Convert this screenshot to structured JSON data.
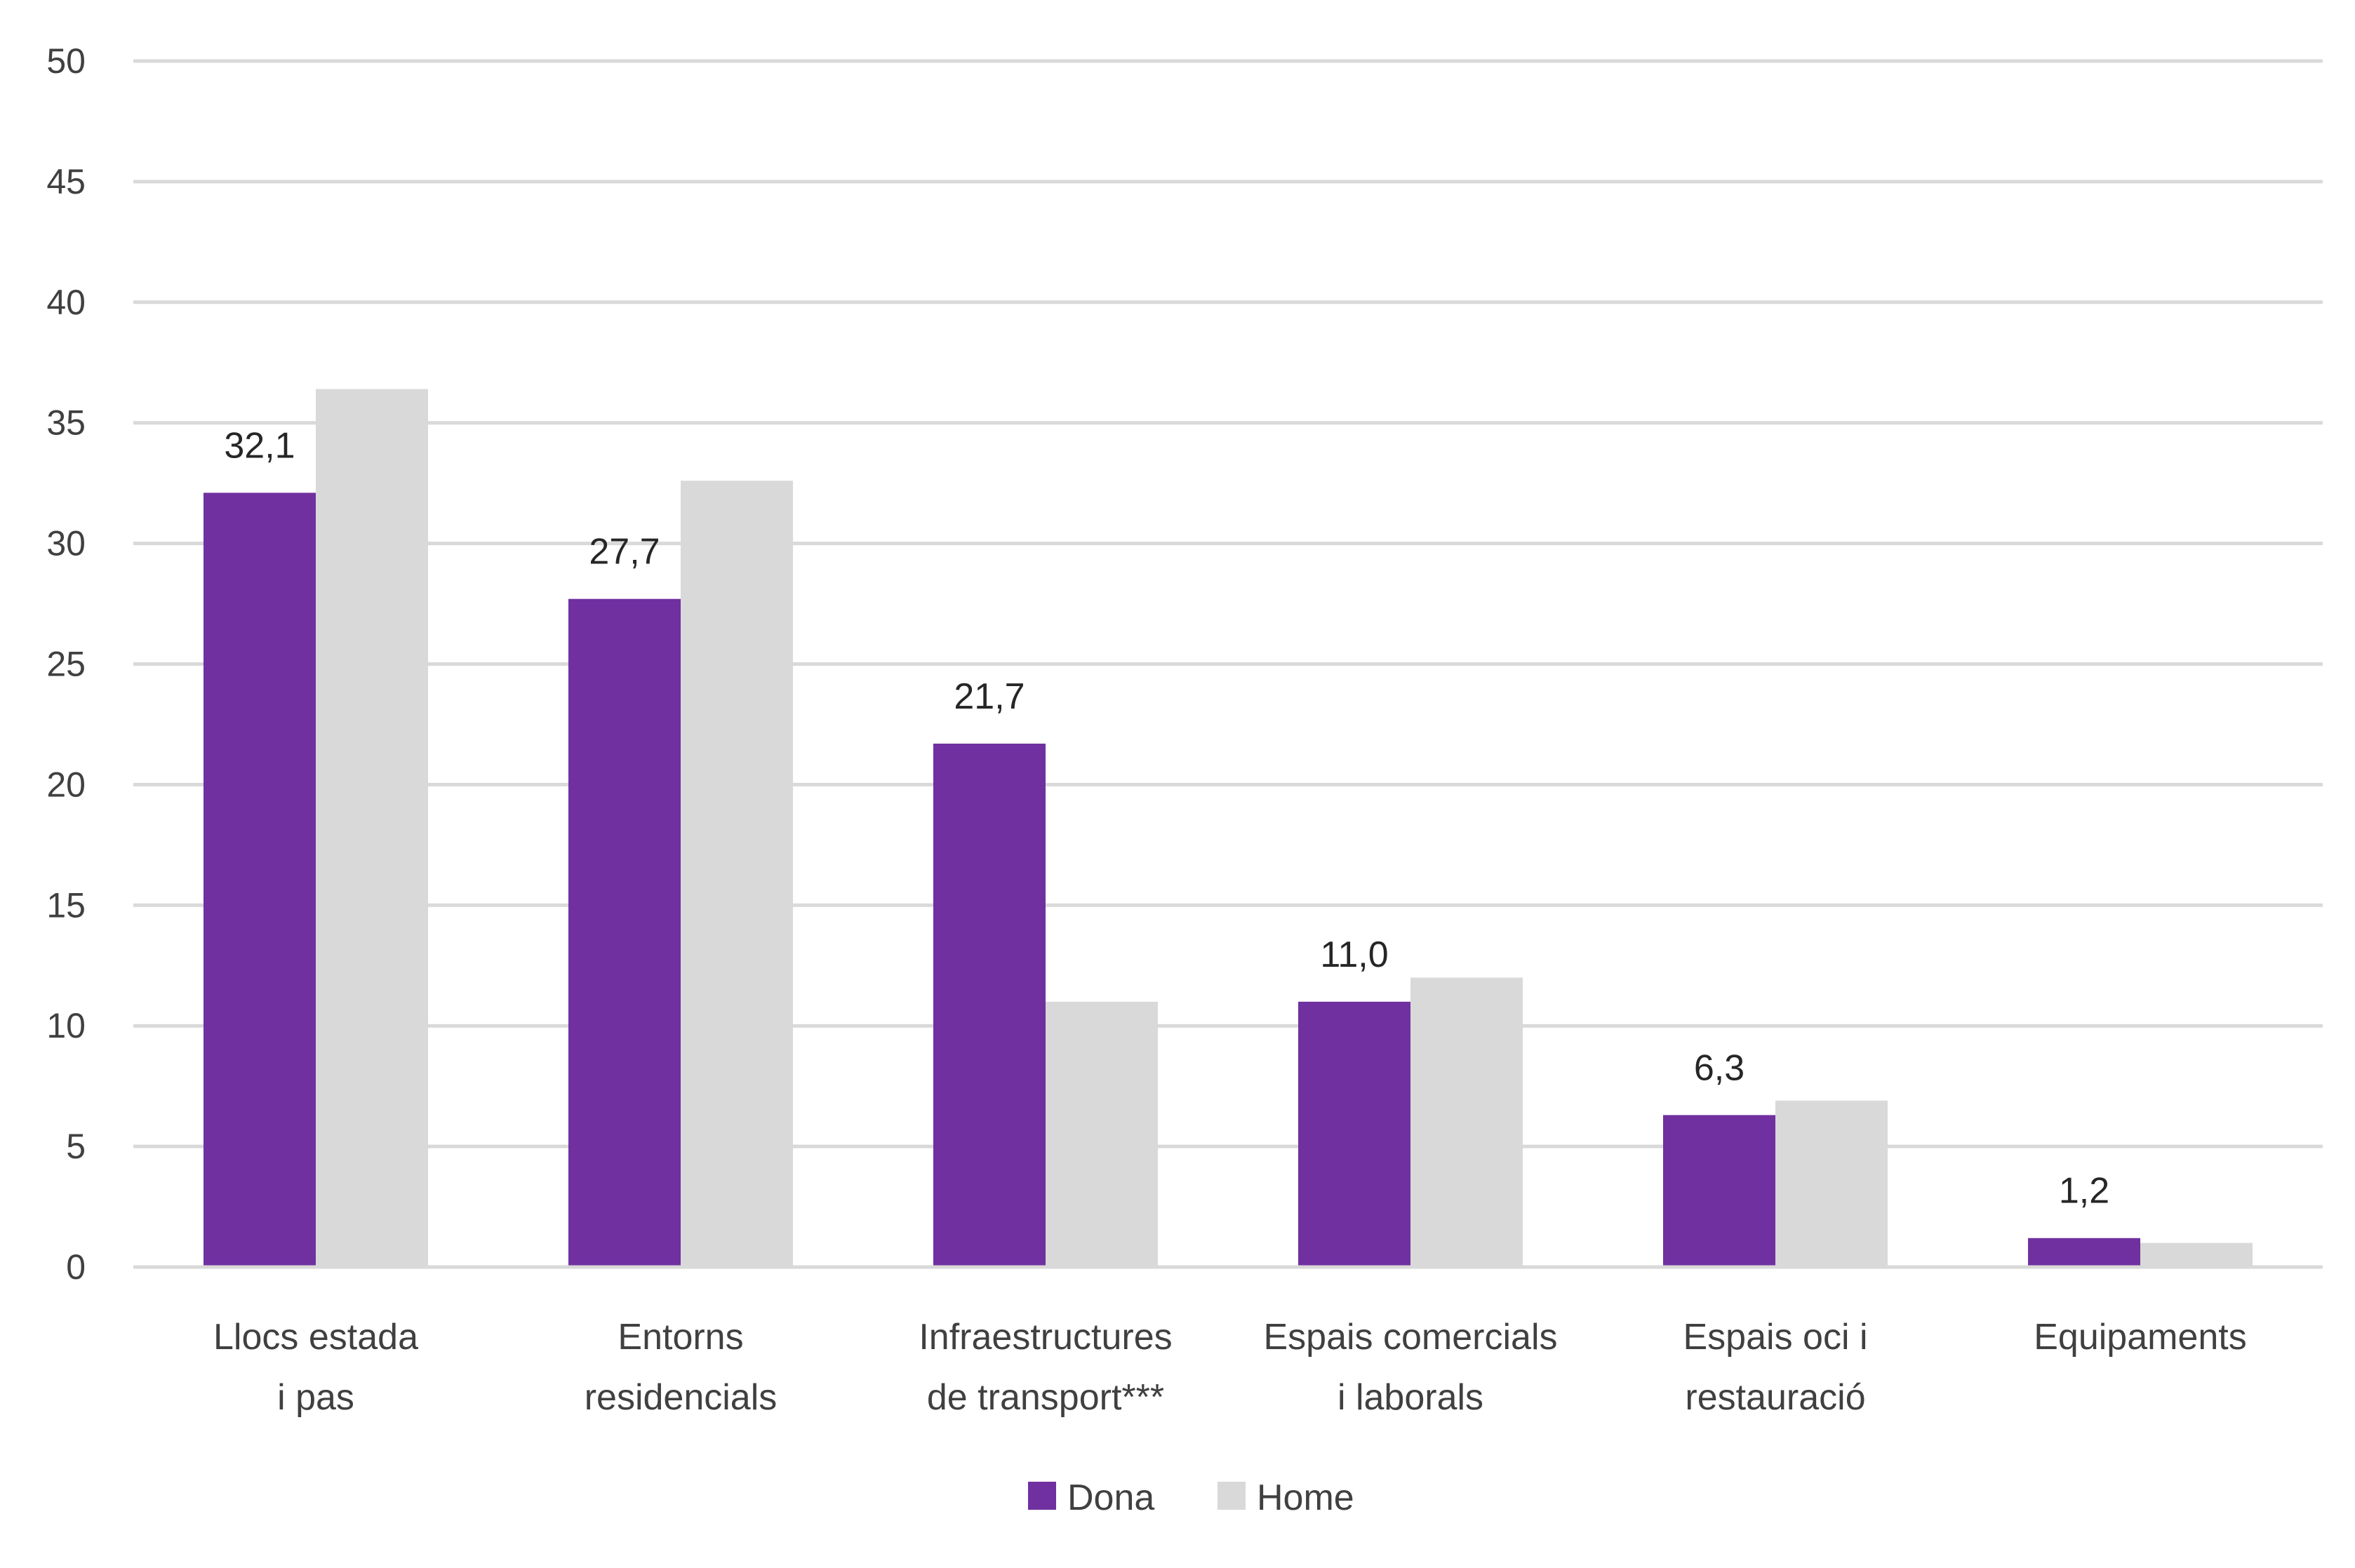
{
  "chart_data": {
    "type": "bar",
    "title": "",
    "xlabel": "",
    "ylabel": "",
    "ylim": [
      0,
      50
    ],
    "yticks": [
      0,
      5,
      10,
      15,
      20,
      25,
      30,
      35,
      40,
      45,
      50
    ],
    "grid": true,
    "legend_position": "bottom",
    "categories": [
      [
        "Llocs estada",
        "i pas"
      ],
      [
        "Entorns",
        "residencials"
      ],
      [
        "Infraestructures",
        "de transport***"
      ],
      [
        "Espais comercials",
        "i laborals"
      ],
      [
        "Espais oci i",
        "restauració"
      ],
      [
        "Equipaments"
      ]
    ],
    "series": [
      {
        "name": "Dona",
        "color": "#7030a0",
        "values": [
          32.1,
          27.7,
          21.7,
          11.0,
          6.3,
          1.2
        ],
        "data_labels": [
          "32,1",
          "27,7",
          "21,7",
          "11,0",
          "6,3",
          "1,2"
        ]
      },
      {
        "name": "Home",
        "color": "#d9d9d9",
        "values": [
          36.4,
          32.6,
          11.0,
          12.0,
          6.9,
          1.0
        ]
      }
    ],
    "colors": {
      "grid": "#d9d9d9",
      "axis": "#d9d9d9"
    }
  }
}
